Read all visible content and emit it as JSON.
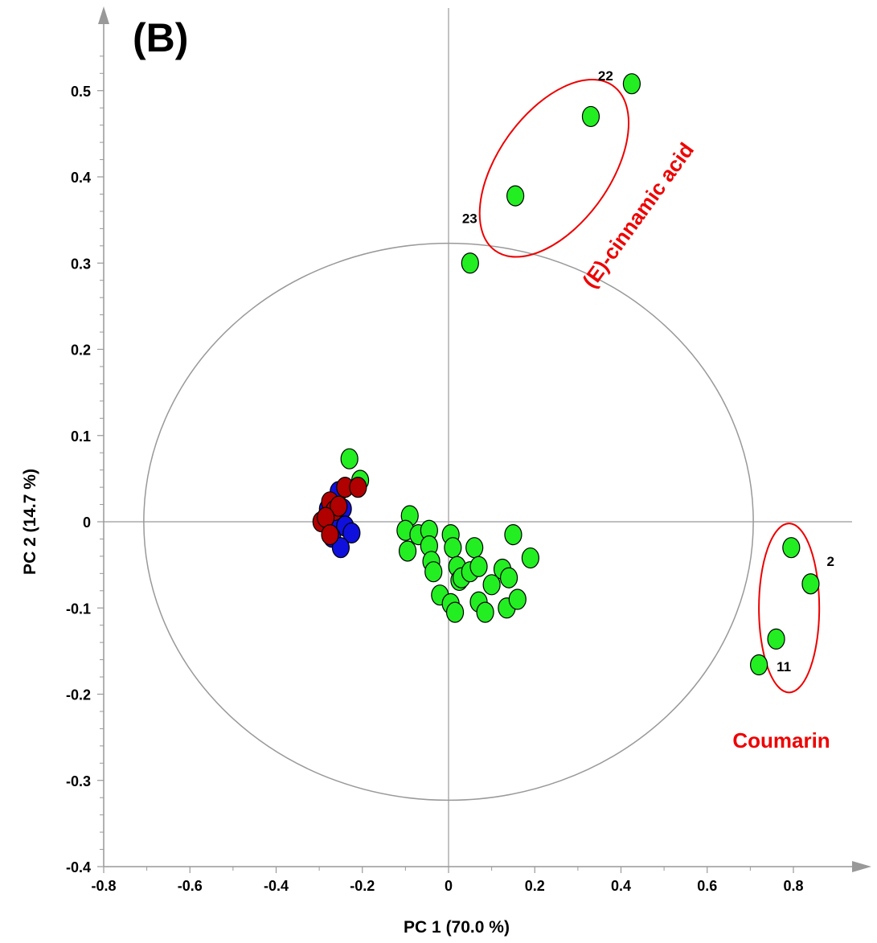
{
  "chart_data": {
    "type": "scatter",
    "panel_label": "(B)",
    "xlabel": "PC 1 (70.0 %)",
    "ylabel": "PC 2 (14.7 %)",
    "xlim": [
      -0.8,
      0.9
    ],
    "ylim": [
      -0.4,
      0.55
    ],
    "x_ticks": [
      -0.8,
      -0.6,
      -0.4,
      -0.2,
      0,
      0.2,
      0.4,
      0.6,
      0.8
    ],
    "x_tick_labels": [
      "-0.8",
      "-0.6",
      "-0.4",
      "-0.2",
      "0",
      "0.2",
      "0.4",
      "0.6",
      "0.8"
    ],
    "y_ticks": [
      -0.4,
      -0.3,
      -0.2,
      -0.1,
      0,
      0.1,
      0.2,
      0.3,
      0.4,
      0.5
    ],
    "y_tick_labels": [
      "-0.4",
      "-0.3",
      "-0.2",
      "-0.1",
      "0",
      "0.1",
      "0.2",
      "0.3",
      "0.4",
      "0.5"
    ],
    "grid": false,
    "colors": {
      "green": "#22ee22",
      "blue": "#1010dd",
      "red": "#b00000",
      "annotation": "#ee0000",
      "reference": "#999999"
    },
    "reference_circle": {
      "cx": 0,
      "cy": 0,
      "rx": 0.707,
      "ry": 0.323
    },
    "series": [
      {
        "color": "green",
        "points": [
          [
            0.425,
            0.508
          ],
          [
            0.33,
            0.47
          ],
          [
            0.155,
            0.378
          ],
          [
            0.05,
            0.3
          ],
          [
            0.795,
            -0.03
          ],
          [
            0.84,
            -0.072
          ],
          [
            0.76,
            -0.136
          ],
          [
            0.72,
            -0.166
          ],
          [
            -0.23,
            0.073
          ],
          [
            -0.205,
            0.048
          ],
          [
            -0.09,
            0.007
          ],
          [
            -0.1,
            -0.01
          ],
          [
            -0.07,
            -0.015
          ],
          [
            -0.095,
            -0.034
          ],
          [
            -0.045,
            -0.01
          ],
          [
            -0.045,
            -0.028
          ],
          [
            -0.04,
            -0.046
          ],
          [
            -0.035,
            -0.058
          ],
          [
            -0.02,
            -0.085
          ],
          [
            0.005,
            -0.015
          ],
          [
            0.01,
            -0.03
          ],
          [
            0.02,
            -0.052
          ],
          [
            0.025,
            -0.068
          ],
          [
            0.03,
            -0.065
          ],
          [
            0.05,
            -0.058
          ],
          [
            0.06,
            -0.03
          ],
          [
            0.07,
            -0.052
          ],
          [
            0.07,
            -0.093
          ],
          [
            0.085,
            -0.105
          ],
          [
            0.1,
            -0.073
          ],
          [
            0.005,
            -0.095
          ],
          [
            0.015,
            -0.105
          ],
          [
            0.125,
            -0.055
          ],
          [
            0.135,
            -0.1
          ],
          [
            0.14,
            -0.065
          ],
          [
            0.15,
            -0.015
          ],
          [
            0.16,
            -0.09
          ],
          [
            0.19,
            -0.042
          ]
        ]
      },
      {
        "color": "blue",
        "points": [
          [
            -0.255,
            0.035
          ],
          [
            -0.245,
            0.015
          ],
          [
            -0.265,
            0.005
          ],
          [
            -0.28,
            0.015
          ],
          [
            -0.24,
            -0.005
          ],
          [
            -0.225,
            -0.013
          ],
          [
            -0.27,
            -0.018
          ],
          [
            -0.25,
            -0.03
          ]
        ]
      },
      {
        "color": "red",
        "points": [
          [
            -0.24,
            0.04
          ],
          [
            -0.21,
            0.04
          ],
          [
            -0.275,
            0.023
          ],
          [
            -0.265,
            0.013
          ],
          [
            -0.255,
            0.018
          ],
          [
            -0.295,
            0.0
          ],
          [
            -0.285,
            0.005
          ],
          [
            -0.275,
            -0.015
          ]
        ]
      }
    ],
    "point_labels": [
      {
        "text": "22",
        "x": 0.425,
        "y": 0.508
      },
      {
        "text": "23",
        "x": 0.05,
        "y": 0.3
      },
      {
        "text": "2",
        "x": 0.84,
        "y": -0.072
      },
      {
        "text": "11",
        "x": 0.72,
        "y": -0.166
      }
    ],
    "groups": [
      {
        "label": "(E)-cinnamic acid",
        "cx": 0.245,
        "cy": 0.41,
        "rx": 0.235,
        "ry": 0.065,
        "angle": -0.95
      },
      {
        "label": "Coumarin",
        "cx": 0.79,
        "cy": -0.1,
        "rx": 0.07,
        "ry": 0.098,
        "angle": 0
      }
    ]
  }
}
